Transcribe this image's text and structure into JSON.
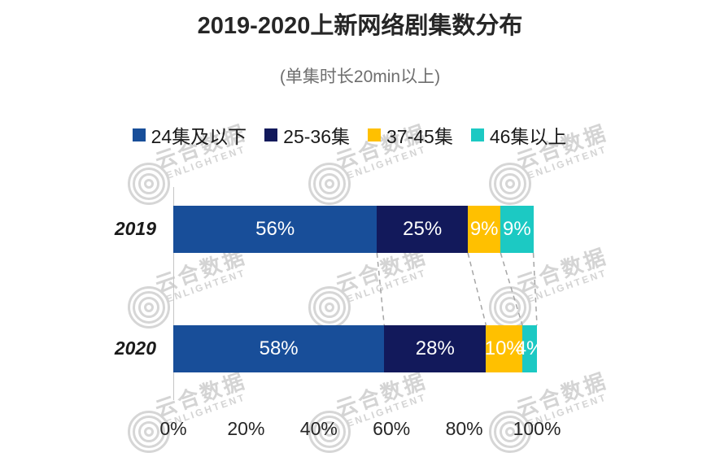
{
  "title": "2019-2020上新网络剧集数分布",
  "subtitle": "(单集时长20min以上)",
  "watermark": {
    "cn": "云合数据",
    "en": "ENLIGHTENT"
  },
  "colors": {
    "blue": "#184E99",
    "navy": "#12195B",
    "yellow": "#FFC000",
    "teal": "#1CC9C3"
  },
  "chart_data": {
    "type": "bar",
    "orientation": "horizontal",
    "stacked": true,
    "categories": [
      "2019",
      "2020"
    ],
    "series": [
      {
        "name": "24集及以下",
        "color_key": "blue",
        "values": [
          56,
          58
        ]
      },
      {
        "name": "25-36集",
        "color_key": "navy",
        "values": [
          25,
          28
        ]
      },
      {
        "name": "37-45集",
        "color_key": "yellow",
        "values": [
          9,
          10
        ]
      },
      {
        "name": "46集以上",
        "color_key": "teal",
        "values": [
          9,
          4
        ]
      }
    ],
    "x_axis_ticks": [
      "0%",
      "20%",
      "40%",
      "60%",
      "80%",
      "100%"
    ],
    "xlim": [
      0,
      100
    ],
    "legend_position": "top",
    "grid": false
  }
}
